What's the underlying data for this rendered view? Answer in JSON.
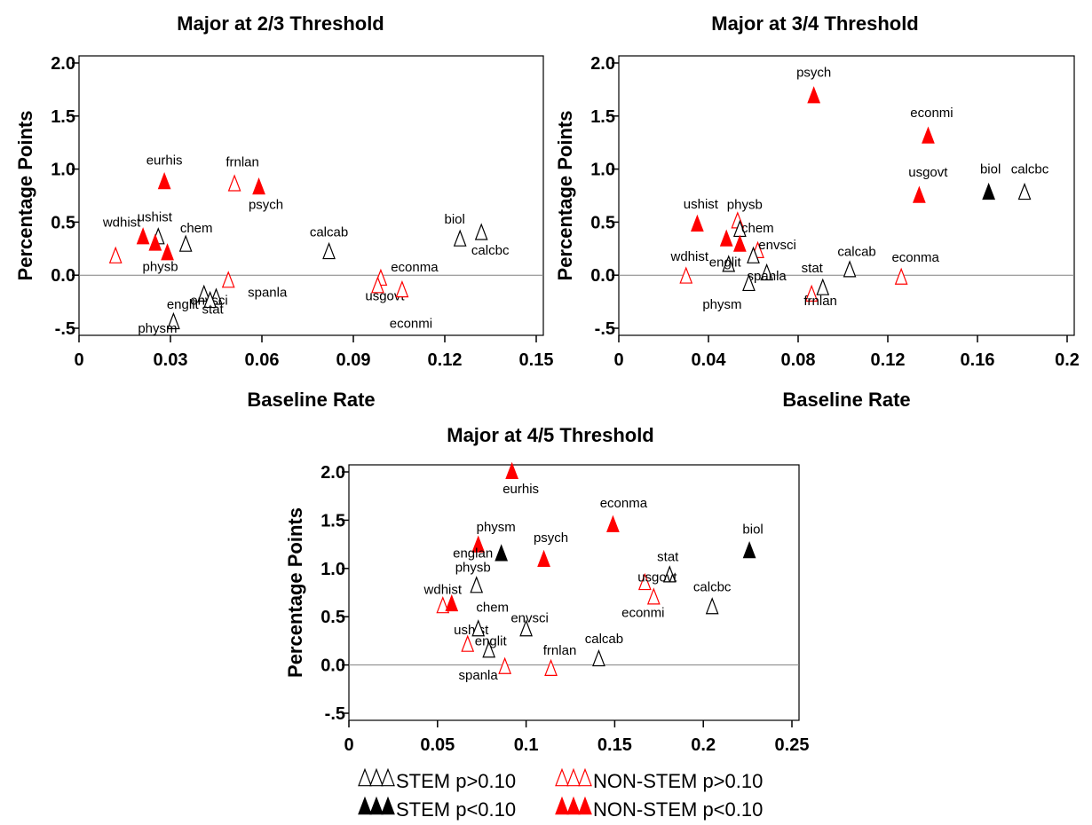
{
  "colors": {
    "stem": "#000000",
    "nonstem": "#ff0000",
    "zero_line": "#808080"
  },
  "chart_data": [
    {
      "type": "scatter",
      "title": "Major at 2/3 Threshold",
      "xlabel": "Baseline Rate",
      "ylabel": "Percentage Points",
      "xlim": [
        0,
        0.15
      ],
      "ylim": [
        -0.5,
        2.0
      ],
      "xticks": [
        "0",
        "0.03",
        "0.06",
        "0.09",
        "0.12",
        "0.15"
      ],
      "yticks": [
        "-.5",
        "0.0",
        "0.5",
        "1.0",
        "1.5",
        "2.0"
      ],
      "grid": false,
      "reference_line_y": 0,
      "points": [
        {
          "label": "eurhis",
          "x": 0.028,
          "y": 0.86,
          "category": "nonstem",
          "significant": true
        },
        {
          "label": "frnlan",
          "x": 0.051,
          "y": 0.84,
          "category": "nonstem",
          "significant": false
        },
        {
          "label": "psych",
          "x": 0.059,
          "y": 0.81,
          "category": "nonstem",
          "significant": true
        },
        {
          "label": "ushist",
          "x": 0.026,
          "y": 0.34,
          "category": "stem",
          "significant": false
        },
        {
          "label": "wdhist",
          "x": 0.021,
          "y": 0.34,
          "category": "nonstem",
          "significant": true
        },
        {
          "label": "chem",
          "x": 0.035,
          "y": 0.27,
          "category": "stem",
          "significant": false
        },
        {
          "label": "physb",
          "x": 0.029,
          "y": 0.19,
          "category": "nonstem",
          "significant": true
        },
        {
          "label": "",
          "x": 0.025,
          "y": 0.28,
          "category": "nonstem",
          "significant": true
        },
        {
          "label": "",
          "x": 0.012,
          "y": 0.16,
          "category": "nonstem",
          "significant": false
        },
        {
          "label": "englit",
          "x": 0.041,
          "y": -0.2,
          "category": "stem",
          "significant": false
        },
        {
          "label": "envsci",
          "x": 0.045,
          "y": -0.23,
          "category": "stem",
          "significant": false
        },
        {
          "label": "stat",
          "x": 0.043,
          "y": -0.26,
          "category": "stem",
          "significant": false
        },
        {
          "label": "physm",
          "x": 0.031,
          "y": -0.46,
          "category": "stem",
          "significant": false
        },
        {
          "label": "spanla",
          "x": 0.049,
          "y": -0.07,
          "category": "nonstem",
          "significant": false
        },
        {
          "label": "calcab",
          "x": 0.082,
          "y": 0.2,
          "category": "stem",
          "significant": false
        },
        {
          "label": "econma",
          "x": 0.099,
          "y": -0.05,
          "category": "nonstem",
          "significant": false
        },
        {
          "label": "usgovt",
          "x": 0.098,
          "y": -0.12,
          "category": "nonstem",
          "significant": false
        },
        {
          "label": "econmi",
          "x": 0.106,
          "y": -0.16,
          "category": "nonstem",
          "significant": false
        },
        {
          "label": "biol",
          "x": 0.125,
          "y": 0.32,
          "category": "stem",
          "significant": false
        },
        {
          "label": "calcbc",
          "x": 0.132,
          "y": 0.38,
          "category": "stem",
          "significant": false
        }
      ]
    },
    {
      "type": "scatter",
      "title": "Major at 3/4 Threshold",
      "xlabel": "Baseline Rate",
      "ylabel": "Percentage Points",
      "xlim": [
        0,
        0.2
      ],
      "ylim": [
        -0.5,
        2.0
      ],
      "xticks": [
        "0",
        "0.04",
        "0.08",
        "0.12",
        "0.16",
        "0.2"
      ],
      "yticks": [
        "-.5",
        "0.0",
        "0.5",
        "1.0",
        "1.5",
        "2.0"
      ],
      "grid": false,
      "reference_line_y": 0,
      "points": [
        {
          "label": "psych",
          "x": 0.087,
          "y": 1.67,
          "category": "nonstem",
          "significant": true
        },
        {
          "label": "econmi",
          "x": 0.138,
          "y": 1.29,
          "category": "nonstem",
          "significant": true
        },
        {
          "label": "usgovt",
          "x": 0.134,
          "y": 0.73,
          "category": "nonstem",
          "significant": true
        },
        {
          "label": "biol",
          "x": 0.165,
          "y": 0.76,
          "category": "stem",
          "significant": true
        },
        {
          "label": "calcbc",
          "x": 0.181,
          "y": 0.76,
          "category": "stem",
          "significant": false
        },
        {
          "label": "ushist",
          "x": 0.035,
          "y": 0.46,
          "category": "nonstem",
          "significant": true
        },
        {
          "label": "physb",
          "x": 0.053,
          "y": 0.49,
          "category": "nonstem",
          "significant": false
        },
        {
          "label": "",
          "x": 0.054,
          "y": 0.41,
          "category": "stem",
          "significant": false
        },
        {
          "label": "",
          "x": 0.048,
          "y": 0.32,
          "category": "nonstem",
          "significant": true
        },
        {
          "label": "chem",
          "x": 0.054,
          "y": 0.27,
          "category": "nonstem",
          "significant": true
        },
        {
          "label": "envsci",
          "x": 0.062,
          "y": 0.21,
          "category": "nonstem",
          "significant": false
        },
        {
          "label": "",
          "x": 0.06,
          "y": 0.16,
          "category": "stem",
          "significant": false
        },
        {
          "label": "englit",
          "x": 0.049,
          "y": 0.08,
          "category": "stem",
          "significant": false
        },
        {
          "label": "wdhist",
          "x": 0.03,
          "y": -0.03,
          "category": "nonstem",
          "significant": false
        },
        {
          "label": "spanla",
          "x": 0.066,
          "y": 0.0,
          "category": "stem",
          "significant": false
        },
        {
          "label": "physm",
          "x": 0.058,
          "y": -0.1,
          "category": "stem",
          "significant": false
        },
        {
          "label": "calcab",
          "x": 0.103,
          "y": 0.03,
          "category": "stem",
          "significant": false
        },
        {
          "label": "stat",
          "x": 0.091,
          "y": -0.14,
          "category": "stem",
          "significant": false
        },
        {
          "label": "frnlan",
          "x": 0.086,
          "y": -0.2,
          "category": "nonstem",
          "significant": false
        },
        {
          "label": "econma",
          "x": 0.126,
          "y": -0.04,
          "category": "nonstem",
          "significant": false
        }
      ]
    },
    {
      "type": "scatter",
      "title": "Major at 4/5 Threshold",
      "xlabel": "",
      "ylabel": "Percentage Points",
      "xlim": [
        0,
        0.25
      ],
      "ylim": [
        -0.5,
        2.0
      ],
      "xticks": [
        "0",
        "0.05",
        "0.1",
        "0.15",
        "0.2",
        "0.25"
      ],
      "yticks": [
        "-.5",
        "0.0",
        "0.5",
        "1.0",
        "1.5",
        "2.0"
      ],
      "grid": false,
      "reference_line_y": 0,
      "points": [
        {
          "label": "eurhis",
          "x": 0.092,
          "y": 1.98,
          "category": "nonstem",
          "significant": true
        },
        {
          "label": "econma",
          "x": 0.149,
          "y": 1.43,
          "category": "nonstem",
          "significant": true
        },
        {
          "label": "physm",
          "x": 0.073,
          "y": 1.22,
          "category": "nonstem",
          "significant": true
        },
        {
          "label": "englan",
          "x": 0.086,
          "y": 1.13,
          "category": "stem",
          "significant": true
        },
        {
          "label": "psych",
          "x": 0.11,
          "y": 1.07,
          "category": "nonstem",
          "significant": true
        },
        {
          "label": "biol",
          "x": 0.226,
          "y": 1.16,
          "category": "stem",
          "significant": true
        },
        {
          "label": "stat",
          "x": 0.181,
          "y": 0.91,
          "category": "stem",
          "significant": false
        },
        {
          "label": "usgovt",
          "x": 0.167,
          "y": 0.83,
          "category": "nonstem",
          "significant": false
        },
        {
          "label": "econmi",
          "x": 0.172,
          "y": 0.68,
          "category": "nonstem",
          "significant": false
        },
        {
          "label": "calcbc",
          "x": 0.205,
          "y": 0.58,
          "category": "stem",
          "significant": false
        },
        {
          "label": "physb",
          "x": 0.072,
          "y": 0.8,
          "category": "stem",
          "significant": false
        },
        {
          "label": "wdhist",
          "x": 0.053,
          "y": 0.59,
          "category": "nonstem",
          "significant": false
        },
        {
          "label": "",
          "x": 0.058,
          "y": 0.61,
          "category": "nonstem",
          "significant": true
        },
        {
          "label": "envsci",
          "x": 0.1,
          "y": 0.35,
          "category": "stem",
          "significant": false
        },
        {
          "label": "ushist",
          "x": 0.067,
          "y": 0.19,
          "category": "nonstem",
          "significant": false
        },
        {
          "label": "chem",
          "x": 0.073,
          "y": 0.35,
          "category": "stem",
          "significant": false
        },
        {
          "label": "englit",
          "x": 0.079,
          "y": 0.13,
          "category": "stem",
          "significant": false
        },
        {
          "label": "frnlan",
          "x": 0.114,
          "y": -0.06,
          "category": "nonstem",
          "significant": false
        },
        {
          "label": "spanla",
          "x": 0.088,
          "y": -0.04,
          "category": "nonstem",
          "significant": false
        },
        {
          "label": "calcab",
          "x": 0.141,
          "y": 0.04,
          "category": "stem",
          "significant": false
        }
      ]
    }
  ],
  "legend": {
    "placement": "bottom-center",
    "items": [
      {
        "text": "STEM p>0.10",
        "category": "stem",
        "significant": false
      },
      {
        "text": "NON-STEM p>0.10",
        "category": "nonstem",
        "significant": false
      },
      {
        "text": "STEM p<0.10",
        "category": "stem",
        "significant": true
      },
      {
        "text": "NON-STEM p<0.10",
        "category": "nonstem",
        "significant": true
      }
    ]
  }
}
